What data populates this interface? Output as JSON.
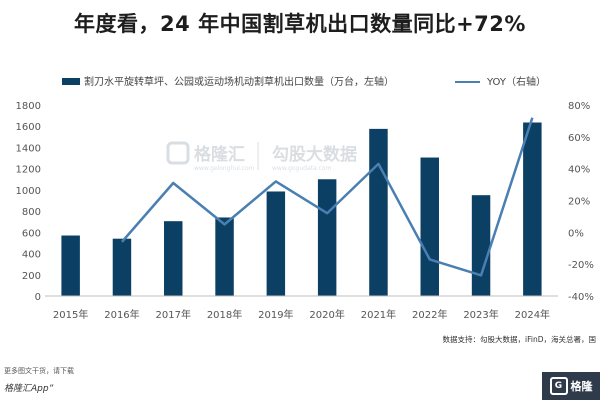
{
  "title": "年度看，24 年中国割草机出口数量同比+72%",
  "watermark": {
    "brand": "格隆汇",
    "brand_sub": "www.gelonghui.com",
    "partner": "勾股大数据",
    "partner_sub": "www.gogudata.com"
  },
  "source": "数据支持：勾股大数据，iFinD，海关总署，国",
  "footer": {
    "line1": "更多图文干货，请下载",
    "line2": "格隆汇App”",
    "logo_text": "格隆"
  },
  "colors": {
    "bar": "#0b3f63",
    "line": "#4a7fb2"
  },
  "chart_data": {
    "type": "bar",
    "categories": [
      "2015年",
      "2016年",
      "2017年",
      "2018年",
      "2019年",
      "2020年",
      "2021年",
      "2022年",
      "2023年",
      "2024年"
    ],
    "series": [
      {
        "name": "割刀水平旋转草坪、公园或运动场机动割草机出口数量（万台，左轴）",
        "type": "bar",
        "axis": "left",
        "values": [
          570,
          540,
          705,
          740,
          985,
          1100,
          1575,
          1305,
          950,
          1635
        ]
      },
      {
        "name": "YOY（右轴）",
        "type": "line",
        "axis": "right",
        "values": [
          null,
          -6,
          31,
          5,
          32,
          12,
          43,
          -17,
          -27,
          72
        ]
      }
    ],
    "y_left": {
      "min": 0,
      "max": 1800,
      "ticks": [
        0,
        200,
        400,
        600,
        800,
        1000,
        1200,
        1400,
        1600,
        1800
      ]
    },
    "y_right": {
      "min": -40,
      "max": 80,
      "ticks": [
        -40,
        -20,
        0,
        20,
        40,
        60,
        80
      ],
      "unit": "%"
    },
    "legend_position": "top",
    "grid": false
  }
}
